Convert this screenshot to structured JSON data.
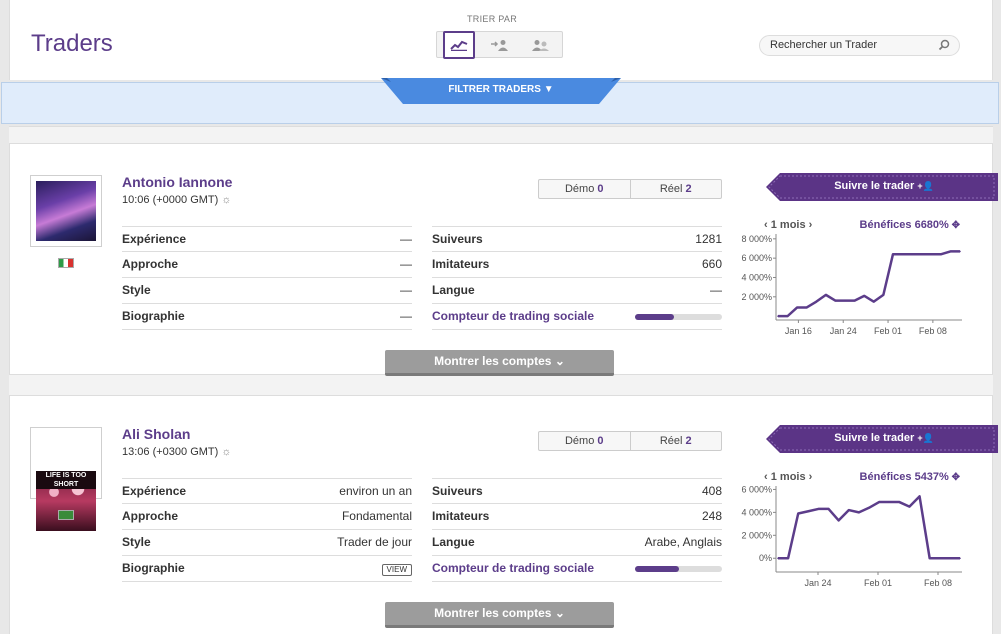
{
  "page": {
    "title": "Traders"
  },
  "sort": {
    "label": "TRIER PAR",
    "options": [
      "performance-icon",
      "followers-icon",
      "copiers-icon"
    ],
    "active": 0
  },
  "search": {
    "placeholder": "Rechercher un Trader"
  },
  "filter": {
    "label": "FILTRER TRADERS"
  },
  "colors": {
    "accent": "#5c3d8a",
    "filter_tab": "#4a8ae0",
    "follow_button": "#5b3486"
  },
  "labels": {
    "experience": "Expérience",
    "approach": "Approche",
    "style": "Style",
    "bio": "Biographie",
    "followers": "Suiveurs",
    "copiers": "Imitateurs",
    "language": "Langue",
    "social_counter": "Compteur de trading sociale",
    "demo": "Démo",
    "real": "Réel",
    "follow": "Suivre le trader",
    "show_accounts": "Montrer les comptes",
    "period": "1 mois",
    "profits_prefix": "Bénéfices",
    "view": "VIEW"
  },
  "traders": [
    {
      "name": "Antonio Iannone",
      "time": "10:06 (+0000 GMT)",
      "country_flag": "italy-flag",
      "demo": "0",
      "real": "2",
      "experience": "—",
      "approach": "—",
      "style": "—",
      "bio": "—",
      "followers": "1281",
      "copiers": "660",
      "language": "—",
      "social_progress": 0.45,
      "profit": "6680%",
      "chart_data": {
        "type": "line",
        "x": [
          "Jan 10",
          "Jan 11",
          "Jan 12",
          "Jan 13",
          "Jan 14",
          "Jan 15",
          "Jan 16",
          "Jan 17",
          "Jan 18",
          "Jan 19",
          "Jan 20",
          "Jan 21",
          "Jan 22",
          "Jan 23",
          "Jan 24",
          "Feb 01",
          "Feb 03",
          "Feb 05",
          "Feb 06",
          "Feb 08"
        ],
        "values": [
          0,
          0,
          900,
          900,
          1500,
          2200,
          1600,
          1600,
          1600,
          2100,
          1500,
          2200,
          6400,
          6400,
          6400,
          6400,
          6400,
          6400,
          6700,
          6700
        ],
        "yticks": [
          "2 000%",
          "4 000%",
          "6 000%",
          "8 000%"
        ],
        "xticks": [
          "Jan 16",
          "Jan 24",
          "Feb 01",
          "Feb 08"
        ],
        "ylim": [
          -400,
          8500
        ]
      }
    },
    {
      "name": "Ali Sholan",
      "time": "13:06 (+0300 GMT)",
      "country_flag": "saudi-flag",
      "demo": "0",
      "real": "2",
      "experience": "environ un an",
      "approach": "Fondamental",
      "style": "Trader de jour",
      "bio": "VIEW",
      "followers": "408",
      "copiers": "248",
      "language": "Arabe, Anglais",
      "social_progress": 0.5,
      "profit": "5437%",
      "chart_data": {
        "type": "line",
        "x": [
          "Jan 18",
          "Jan 19",
          "Jan 20",
          "Jan 21",
          "Jan 22",
          "Jan 23",
          "Jan 24",
          "Jan 26",
          "Jan 27",
          "Jan 28",
          "Jan 29",
          "Jan 30",
          "Feb 01",
          "Feb 02",
          "Feb 03",
          "Feb 04",
          "Feb 05",
          "Feb 06",
          "Feb 08"
        ],
        "values": [
          0,
          0,
          3900,
          4100,
          4300,
          4300,
          3300,
          4200,
          4000,
          4400,
          4900,
          4900,
          4900,
          4500,
          5400,
          0,
          0,
          0,
          0
        ],
        "yticks": [
          "0%",
          "2 000%",
          "4 000%",
          "6 000%"
        ],
        "xticks": [
          "Jan 24",
          "Feb 01",
          "Feb 08"
        ],
        "ylim": [
          -1200,
          6300
        ]
      }
    }
  ]
}
